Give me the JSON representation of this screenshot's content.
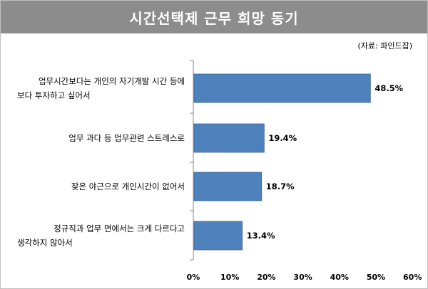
{
  "title": "시간선택제 근무 희망 동기",
  "source": "(자료: 파인드잡)",
  "chart_data": {
    "type": "bar",
    "orientation": "horizontal",
    "categories": [
      [
        "업무시간보다는 개인의 자기개발 시간 등에",
        "보다 투자하고 싶어서"
      ],
      [
        "업무 과다 등 업무관련 스트레스로"
      ],
      [
        "잦은 야근으로 개인시간이 없어서"
      ],
      [
        "정규직과 업무 면에서는 크게 다르다고",
        "생각하지 않아서"
      ]
    ],
    "values": [
      48.5,
      19.4,
      18.7,
      13.4
    ],
    "value_labels": [
      "48.5%",
      "19.4%",
      "18.7%",
      "13.4%"
    ],
    "xlim": [
      0,
      60
    ],
    "ticks": [
      0,
      10,
      20,
      30,
      40,
      50,
      60
    ],
    "tick_labels": [
      "0%",
      "10%",
      "20%",
      "30%",
      "40%",
      "50%",
      "60%"
    ],
    "bar_color": "#4f81bd",
    "grid": false,
    "legend": "none"
  }
}
